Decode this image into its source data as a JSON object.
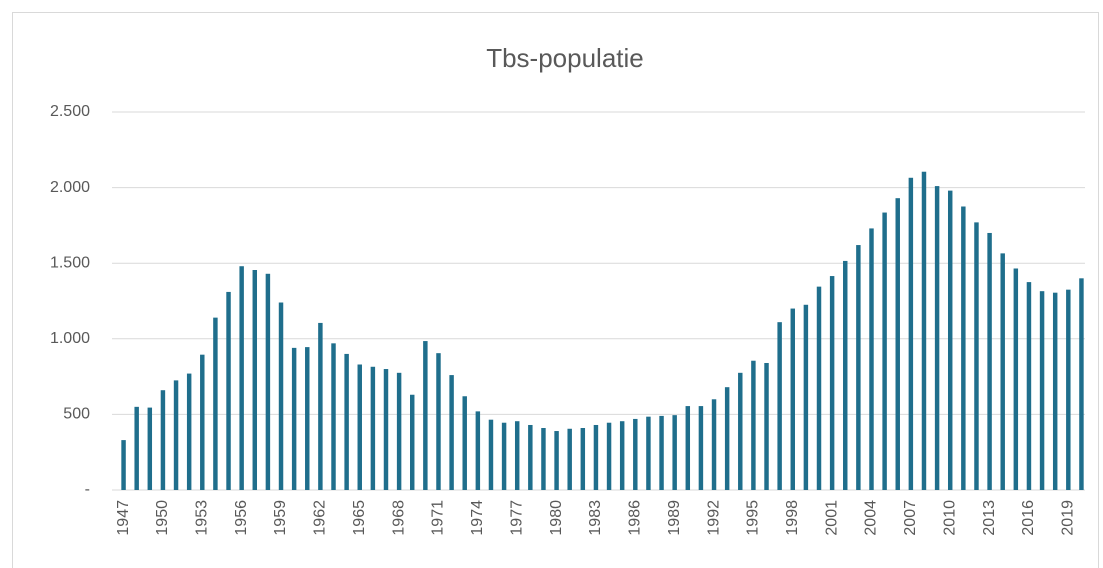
{
  "chart_data": {
    "type": "bar",
    "title": "Tbs-populatie",
    "categories": [
      "1947",
      null,
      null,
      "1950",
      null,
      null,
      "1953",
      null,
      null,
      "1956",
      null,
      null,
      "1959",
      null,
      null,
      "1962",
      null,
      null,
      "1965",
      null,
      null,
      "1968",
      null,
      null,
      "1971",
      null,
      null,
      "1974",
      null,
      null,
      "1977",
      null,
      null,
      "1980",
      null,
      null,
      "1983",
      null,
      null,
      "1986",
      null,
      null,
      "1989",
      null,
      null,
      "1992",
      null,
      null,
      "1995",
      null,
      null,
      "1998",
      null,
      null,
      "2001",
      null,
      null,
      "2004",
      null,
      null,
      "2007",
      null,
      null,
      "2010",
      null,
      null,
      "2013",
      null,
      null,
      "2016",
      null,
      null,
      "2019",
      null
    ],
    "values": [
      330,
      550,
      545,
      660,
      725,
      770,
      895,
      1140,
      1310,
      1480,
      1455,
      1430,
      1240,
      940,
      945,
      1105,
      970,
      900,
      830,
      815,
      800,
      775,
      630,
      985,
      905,
      760,
      620,
      520,
      465,
      445,
      455,
      430,
      410,
      390,
      405,
      410,
      430,
      445,
      455,
      470,
      485,
      490,
      495,
      555,
      555,
      600,
      680,
      775,
      855,
      840,
      1110,
      1200,
      1225,
      1345,
      1415,
      1515,
      1620,
      1730,
      1835,
      1930,
      2065,
      2105,
      2010,
      1980,
      1875,
      1770,
      1700,
      1565,
      1465,
      1375,
      1315,
      1305,
      1325,
      1400
    ],
    "color": "#1f6e8c",
    "ylim": [
      0,
      2500
    ],
    "yticks": [
      {
        "value": 0,
        "label": "-"
      },
      500,
      {
        "value": 1000,
        "label": "1.000"
      },
      {
        "value": 1500,
        "label": "1.500"
      },
      {
        "value": 2000,
        "label": "2.000"
      },
      {
        "value": 2500,
        "label": "2.500"
      }
    ],
    "grid": true
  }
}
